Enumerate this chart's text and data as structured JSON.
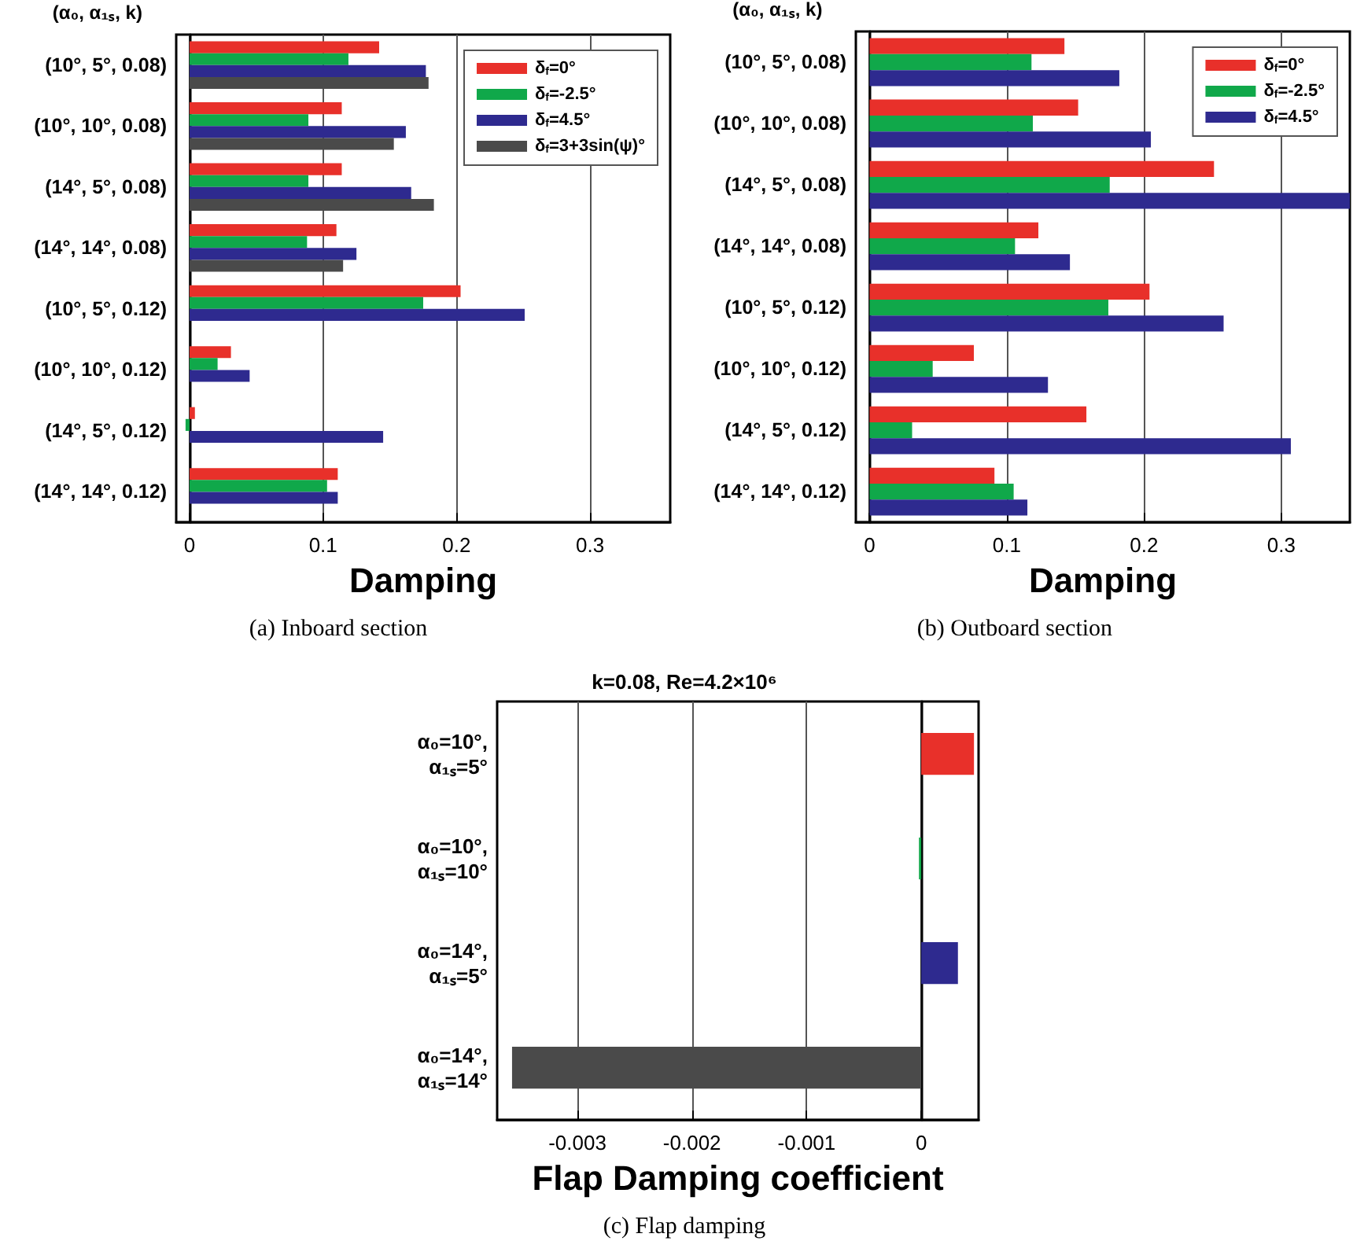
{
  "chart_data": [
    {
      "type": "bar",
      "orientation": "horizontal",
      "ylabel": "(α₀, α₁ₛ, k)",
      "xlabel": "Damping",
      "annotations": [
        "(a) Inboard section"
      ],
      "categories": [
        "(10°, 5°, 0.08)",
        "(10°, 10°, 0.08)",
        "(14°, 5°, 0.08)",
        "(14°, 14°, 0.08)",
        "(10°, 5°, 0.12)",
        "(10°, 10°, 0.12)",
        "(14°, 5°, 0.12)",
        "(14°, 14°, 0.12)"
      ],
      "series": [
        {
          "name": "δ$_{f}$=0°",
          "color": "#e8302a",
          "values": [
            0.142,
            0.114,
            0.114,
            0.11,
            0.203,
            0.031,
            0.004,
            0.111
          ]
        },
        {
          "name": "δ$_{f}$=-2.5°",
          "color": "#10a84a",
          "values": [
            0.119,
            0.089,
            0.089,
            0.088,
            0.175,
            0.021,
            -0.003,
            0.103
          ]
        },
        {
          "name": "δ$_{f}$=4.5°",
          "color": "#2e2a8f",
          "values": [
            0.177,
            0.162,
            0.166,
            0.125,
            0.251,
            0.045,
            0.145,
            0.111
          ]
        },
        {
          "name": "δ$_{f}$=3+3sin(ψ)°",
          "color": "#4a4a4a",
          "values": [
            0.179,
            0.153,
            0.183,
            0.115,
            null,
            null,
            null,
            null
          ]
        }
      ],
      "xlim": [
        -0.01,
        0.36
      ],
      "xticks": [
        0,
        0.1,
        0.2,
        0.3
      ],
      "grid": "x",
      "legend": "top right"
    },
    {
      "type": "bar",
      "orientation": "horizontal",
      "ylabel": "(α₀, α₁ₛ, k)",
      "xlabel": "Damping",
      "annotations": [
        "(b) Outboard section"
      ],
      "categories": [
        "(10°, 5°, 0.08)",
        "(10°, 10°, 0.08)",
        "(14°, 5°, 0.08)",
        "(14°, 14°, 0.08)",
        "(10°, 5°, 0.12)",
        "(10°, 10°, 0.12)",
        "(14°, 5°, 0.12)",
        "(14°, 14°, 0.12)"
      ],
      "series": [
        {
          "name": "δ$_{f}$=0°",
          "color": "#e8302a",
          "values": [
            0.142,
            0.152,
            0.251,
            0.123,
            0.204,
            0.076,
            0.158,
            0.091
          ]
        },
        {
          "name": "δ$_{f}$=-2.5°",
          "color": "#10a84a",
          "values": [
            0.118,
            0.119,
            0.175,
            0.106,
            0.174,
            0.046,
            0.031,
            0.105
          ]
        },
        {
          "name": "δ$_{f}$=4.5°",
          "color": "#2e2a8f",
          "values": [
            0.182,
            0.205,
            0.35,
            0.146,
            0.258,
            0.13,
            0.307,
            0.115
          ]
        }
      ],
      "xlim": [
        -0.01,
        0.35
      ],
      "xticks": [
        0,
        0.1,
        0.2,
        0.3
      ],
      "grid": "x",
      "legend": "top right"
    },
    {
      "type": "bar",
      "orientation": "horizontal",
      "title": "k=0.08, Re=4.2×10⁶",
      "xlabel": "Flap Damping coefficient",
      "annotations": [
        "(c) Flap damping"
      ],
      "categories": [
        "α₀=10°,\nα₁ₛ=5°",
        "α₀=10°,\nα₁ₛ=10°",
        "α₀=14°,\nα₁ₛ=5°",
        "α₀=14°,\nα₁ₛ=14°"
      ],
      "values": [
        0.00046,
        -2e-05,
        0.00032,
        -0.00357
      ],
      "colors": [
        "#e8302a",
        "#10a84a",
        "#2e2a8f",
        "#4a4a4a"
      ],
      "xlim": [
        -0.0037,
        0.0005
      ],
      "xticks": [
        -0.003,
        -0.002,
        -0.001,
        0
      ],
      "grid": "x"
    }
  ]
}
